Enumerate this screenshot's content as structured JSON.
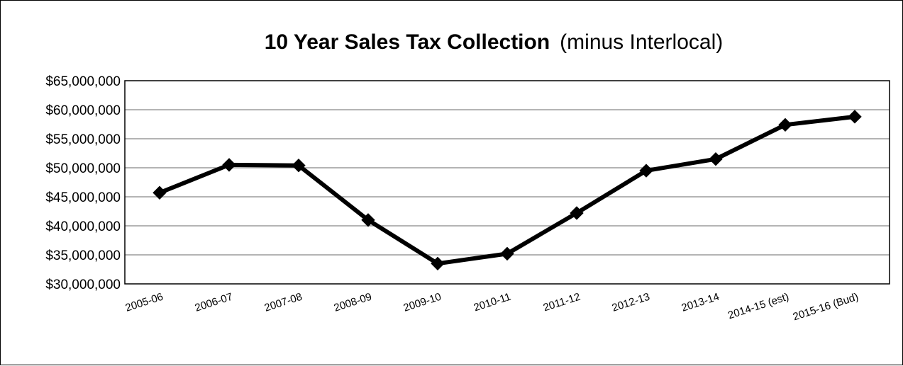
{
  "chart_data": {
    "type": "line",
    "title": "10 Year Sales Tax Collection",
    "title_suffix": "(minus Interlocal)",
    "xlabel": "",
    "ylabel": "",
    "categories": [
      "2005-06",
      "2006-07",
      "2007-08",
      "2008-09",
      "2009-10",
      "2010-11",
      "2011-12",
      "2012-13",
      "2013-14",
      "2014-15 (est)",
      "2015-16 (Bud)"
    ],
    "series": [
      {
        "values": [
          45700000,
          50500000,
          50400000,
          41000000,
          33500000,
          35200000,
          42200000,
          49500000,
          51500000,
          57400000,
          58800000
        ],
        "color": "#000000",
        "marker": "diamond"
      }
    ],
    "ylim": [
      30000000,
      65000000
    ],
    "ytick_labels": [
      "$30,000,000",
      "$35,000,000",
      "$40,000,000",
      "$45,000,000",
      "$50,000,000",
      "$55,000,000",
      "$60,000,000",
      "$65,000,000"
    ],
    "ytick_values": [
      30000000,
      35000000,
      40000000,
      45000000,
      50000000,
      55000000,
      60000000,
      65000000
    ],
    "grid": true,
    "legend": "none",
    "gridline_color": "#868686"
  }
}
